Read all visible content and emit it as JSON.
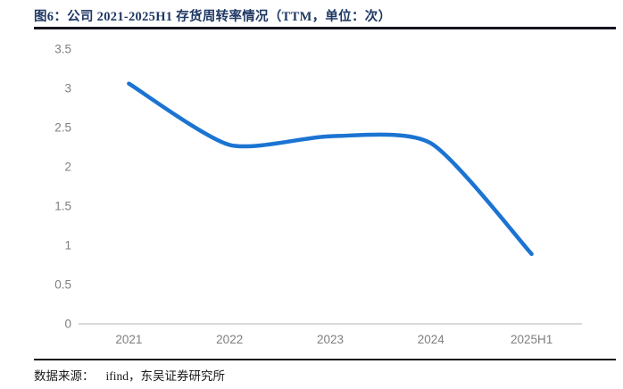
{
  "figure": {
    "title": "图6：公司 2021-2025H1 存货周转率情况（TTM，单位：次）"
  },
  "footer": {
    "source_label": "数据来源：",
    "source_value": "ifind，东吴证券研究所"
  },
  "colors": {
    "title_text": "#1F3864",
    "series_line": "#1B74D2",
    "axis_line": "#D9D9D9",
    "tick_label": "#7F7F7F",
    "divider": "#15151F"
  },
  "chart_data": {
    "type": "line",
    "title": "图6：公司 2021-2025H1 存货周转率情况（TTM，单位：次）",
    "categories": [
      "2021",
      "2022",
      "2023",
      "2024",
      "2025H1"
    ],
    "values": [
      3.06,
      2.28,
      2.39,
      2.3,
      0.89
    ],
    "xlabel": "",
    "ylabel": "",
    "ylim": [
      0,
      3.5
    ],
    "ytick_step": 0.5,
    "ytick_labels": [
      "0",
      "0.5",
      "1",
      "1.5",
      "2",
      "2.5",
      "3",
      "3.5"
    ],
    "grid": false,
    "legend": false,
    "smoothed": true,
    "line_color": "#1B74D2"
  }
}
